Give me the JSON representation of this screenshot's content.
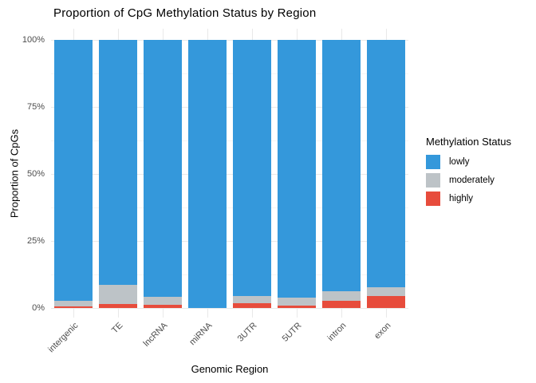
{
  "chart_data": {
    "type": "bar",
    "stacked": true,
    "title": "Proportion of CpG Methylation Status by Region",
    "xlabel": "Genomic Region",
    "ylabel": "Proportion of CpGs",
    "categories": [
      "intergenic",
      "TE",
      "lncRNA",
      "miRNA",
      "3UTR",
      "5UTR",
      "intron",
      "exon"
    ],
    "series": [
      {
        "name": "lowly",
        "color": "#3498db",
        "values": [
          97.3,
          91.5,
          95.8,
          100,
          95.4,
          96.1,
          93.7,
          92.4
        ]
      },
      {
        "name": "moderately",
        "color": "#bdc3c7",
        "values": [
          2.0,
          7.0,
          3.0,
          0,
          2.9,
          2.9,
          3.5,
          3.0
        ]
      },
      {
        "name": "highly",
        "color": "#e74c3c",
        "values": [
          0.7,
          1.5,
          1.2,
          0,
          1.7,
          1.0,
          2.8,
          4.6
        ]
      }
    ],
    "ylim": [
      0,
      100
    ],
    "y_tick_values": [
      0,
      25,
      50,
      75,
      100
    ],
    "y_tick_labels": [
      "0%",
      "25%",
      "50%",
      "75%",
      "100%"
    ],
    "legend_title": "Methylation Status",
    "legend_position": "right",
    "grid": true,
    "colors": {
      "grid_major": "#e9e9e9",
      "grid_minor": "#f5f5f5",
      "axis_text": "#4d4d4d",
      "title_text": "#000000"
    }
  }
}
